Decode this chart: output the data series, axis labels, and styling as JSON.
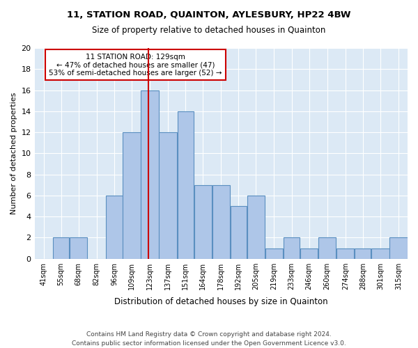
{
  "title1": "11, STATION ROAD, QUAINTON, AYLESBURY, HP22 4BW",
  "title2": "Size of property relative to detached houses in Quainton",
  "xlabel": "Distribution of detached houses by size in Quainton",
  "ylabel": "Number of detached properties",
  "footnote1": "Contains HM Land Registry data © Crown copyright and database right 2024.",
  "footnote2": "Contains public sector information licensed under the Open Government Licence v3.0.",
  "annotation_line1": "11 STATION ROAD: 129sqm",
  "annotation_line2": "← 47% of detached houses are smaller (47)",
  "annotation_line3": "53% of semi-detached houses are larger (52) →",
  "bar_labels": [
    "41sqm",
    "55sqm",
    "68sqm",
    "82sqm",
    "96sqm",
    "109sqm",
    "123sqm",
    "137sqm",
    "151sqm",
    "164sqm",
    "178sqm",
    "192sqm",
    "205sqm",
    "219sqm",
    "233sqm",
    "246sqm",
    "260sqm",
    "274sqm",
    "288sqm",
    "301sqm",
    "315sqm"
  ],
  "bar_values": [
    0,
    2,
    2,
    0,
    6,
    12,
    16,
    12,
    14,
    7,
    7,
    5,
    6,
    1,
    2,
    1,
    2,
    1,
    1,
    1,
    2
  ],
  "bar_edges": [
    41,
    55,
    68,
    82,
    96,
    109,
    123,
    137,
    151,
    164,
    178,
    192,
    205,
    219,
    233,
    246,
    260,
    274,
    288,
    301,
    315,
    329
  ],
  "subject_value": 129,
  "bar_color": "#aec6e8",
  "bar_edge_color": "#5a8fc0",
  "vline_color": "#cc0000",
  "annotation_box_color": "#cc0000",
  "background_color": "#dce9f5",
  "ylim": [
    0,
    20
  ],
  "yticks": [
    0,
    2,
    4,
    6,
    8,
    10,
    12,
    14,
    16,
    18,
    20
  ]
}
